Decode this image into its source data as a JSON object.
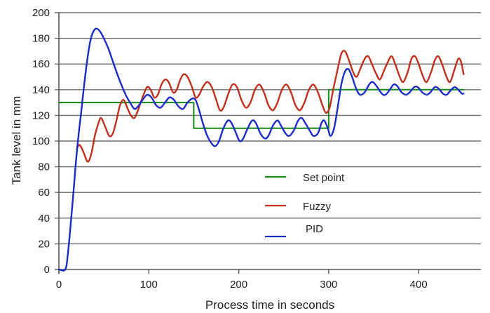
{
  "chart_data": {
    "type": "line",
    "title": "",
    "xlabel": "Process time in seconds",
    "ylabel": "Tank level in mm",
    "xlim": [
      0,
      470
    ],
    "ylim": [
      0,
      200
    ],
    "x_ticks": [
      0,
      100,
      200,
      300,
      400
    ],
    "y_ticks": [
      0,
      20,
      40,
      60,
      80,
      100,
      120,
      140,
      160,
      180,
      200
    ],
    "grid": {
      "horizontal": true,
      "vertical": false
    },
    "legend_position": "inside-lower-center",
    "series": [
      {
        "name": "Set point",
        "color": "#1a8a1a",
        "points": [
          [
            0,
            130
          ],
          [
            150,
            130
          ],
          [
            150,
            110
          ],
          [
            300,
            110
          ],
          [
            300,
            140
          ],
          [
            450,
            140
          ]
        ]
      },
      {
        "name": "Fuzzy",
        "color": "#c0301c",
        "points": [
          [
            20,
            94
          ],
          [
            23,
            97
          ],
          [
            27,
            92
          ],
          [
            32,
            84
          ],
          [
            36,
            90
          ],
          [
            40,
            104
          ],
          [
            44,
            114
          ],
          [
            47,
            118
          ],
          [
            51,
            112
          ],
          [
            56,
            104
          ],
          [
            60,
            106
          ],
          [
            64,
            116
          ],
          [
            68,
            128
          ],
          [
            72,
            132
          ],
          [
            76,
            126
          ],
          [
            80,
            120
          ],
          [
            84,
            118
          ],
          [
            88,
            124
          ],
          [
            93,
            134
          ],
          [
            98,
            142
          ],
          [
            102,
            140
          ],
          [
            106,
            134
          ],
          [
            110,
            136
          ],
          [
            114,
            144
          ],
          [
            118,
            148
          ],
          [
            122,
            146
          ],
          [
            127,
            138
          ],
          [
            131,
            140
          ],
          [
            135,
            148
          ],
          [
            139,
            152
          ],
          [
            143,
            150
          ],
          [
            148,
            142
          ],
          [
            152,
            134
          ],
          [
            156,
            136
          ],
          [
            160,
            142
          ],
          [
            165,
            146
          ],
          [
            170,
            142
          ],
          [
            175,
            132
          ],
          [
            179,
            124
          ],
          [
            183,
            126
          ],
          [
            188,
            136
          ],
          [
            193,
            144
          ],
          [
            198,
            142
          ],
          [
            203,
            132
          ],
          [
            208,
            126
          ],
          [
            213,
            130
          ],
          [
            218,
            140
          ],
          [
            223,
            144
          ],
          [
            228,
            138
          ],
          [
            233,
            128
          ],
          [
            238,
            124
          ],
          [
            243,
            130
          ],
          [
            248,
            140
          ],
          [
            253,
            144
          ],
          [
            258,
            138
          ],
          [
            263,
            128
          ],
          [
            268,
            124
          ],
          [
            273,
            130
          ],
          [
            278,
            140
          ],
          [
            283,
            144
          ],
          [
            288,
            138
          ],
          [
            293,
            128
          ],
          [
            297,
            122
          ],
          [
            301,
            126
          ],
          [
            305,
            140
          ],
          [
            310,
            156
          ],
          [
            314,
            168
          ],
          [
            318,
            170
          ],
          [
            322,
            164
          ],
          [
            327,
            154
          ],
          [
            331,
            150
          ],
          [
            335,
            156
          ],
          [
            340,
            164
          ],
          [
            344,
            166
          ],
          [
            348,
            160
          ],
          [
            353,
            152
          ],
          [
            357,
            148
          ],
          [
            361,
            154
          ],
          [
            366,
            162
          ],
          [
            370,
            166
          ],
          [
            374,
            160
          ],
          [
            379,
            150
          ],
          [
            383,
            146
          ],
          [
            388,
            154
          ],
          [
            392,
            164
          ],
          [
            396,
            166
          ],
          [
            400,
            160
          ],
          [
            405,
            150
          ],
          [
            409,
            146
          ],
          [
            414,
            154
          ],
          [
            418,
            163
          ],
          [
            422,
            166
          ],
          [
            426,
            160
          ],
          [
            431,
            150
          ],
          [
            435,
            146
          ],
          [
            440,
            156
          ],
          [
            444,
            164
          ],
          [
            447,
            162
          ],
          [
            450,
            152
          ]
        ]
      },
      {
        "name": "PID",
        "color": "#1c2cc8",
        "points": [
          [
            0,
            0
          ],
          [
            7,
            0
          ],
          [
            10,
            12
          ],
          [
            15,
            50
          ],
          [
            20,
            92
          ],
          [
            25,
            124
          ],
          [
            30,
            155
          ],
          [
            35,
            178
          ],
          [
            40,
            187
          ],
          [
            45,
            186
          ],
          [
            50,
            180
          ],
          [
            55,
            172
          ],
          [
            60,
            162
          ],
          [
            65,
            152
          ],
          [
            70,
            143
          ],
          [
            75,
            135
          ],
          [
            80,
            129
          ],
          [
            84,
            125
          ],
          [
            88,
            127
          ],
          [
            93,
            132
          ],
          [
            98,
            136
          ],
          [
            103,
            134
          ],
          [
            108,
            128
          ],
          [
            113,
            126
          ],
          [
            118,
            130
          ],
          [
            123,
            134
          ],
          [
            128,
            132
          ],
          [
            133,
            127
          ],
          [
            138,
            125
          ],
          [
            143,
            130
          ],
          [
            148,
            133
          ],
          [
            152,
            132
          ],
          [
            156,
            124
          ],
          [
            160,
            114
          ],
          [
            165,
            104
          ],
          [
            170,
            98
          ],
          [
            174,
            96
          ],
          [
            178,
            100
          ],
          [
            183,
            110
          ],
          [
            188,
            116
          ],
          [
            192,
            114
          ],
          [
            197,
            106
          ],
          [
            201,
            100
          ],
          [
            205,
            102
          ],
          [
            210,
            110
          ],
          [
            215,
            116
          ],
          [
            219,
            114
          ],
          [
            224,
            106
          ],
          [
            229,
            102
          ],
          [
            233,
            104
          ],
          [
            238,
            112
          ],
          [
            243,
            116
          ],
          [
            247,
            112
          ],
          [
            252,
            106
          ],
          [
            256,
            104
          ],
          [
            261,
            108
          ],
          [
            266,
            116
          ],
          [
            270,
            118
          ],
          [
            274,
            114
          ],
          [
            279,
            108
          ],
          [
            283,
            104
          ],
          [
            288,
            106
          ],
          [
            292,
            114
          ],
          [
            295,
            116
          ],
          [
            299,
            110
          ],
          [
            302,
            104
          ],
          [
            306,
            110
          ],
          [
            310,
            126
          ],
          [
            314,
            144
          ],
          [
            318,
            154
          ],
          [
            322,
            156
          ],
          [
            326,
            150
          ],
          [
            331,
            140
          ],
          [
            335,
            136
          ],
          [
            340,
            138
          ],
          [
            345,
            144
          ],
          [
            349,
            146
          ],
          [
            354,
            142
          ],
          [
            359,
            137
          ],
          [
            363,
            136
          ],
          [
            368,
            140
          ],
          [
            372,
            144
          ],
          [
            376,
            143
          ],
          [
            381,
            138
          ],
          [
            386,
            136
          ],
          [
            390,
            138
          ],
          [
            395,
            142
          ],
          [
            399,
            142
          ],
          [
            404,
            138
          ],
          [
            409,
            136
          ],
          [
            413,
            138
          ],
          [
            418,
            142
          ],
          [
            422,
            141
          ],
          [
            427,
            137
          ],
          [
            431,
            136
          ],
          [
            435,
            139
          ],
          [
            440,
            142
          ],
          [
            444,
            140
          ],
          [
            448,
            137
          ],
          [
            450,
            137
          ]
        ]
      }
    ]
  },
  "axes": {
    "x_title": "Process time in seconds",
    "y_title": "Tank level in mm",
    "x_tick_labels": [
      "0",
      "100",
      "200",
      "300",
      "400"
    ],
    "y_tick_labels": [
      "0",
      "20",
      "40",
      "60",
      "80",
      "100",
      "120",
      "140",
      "160",
      "180",
      "200"
    ]
  },
  "legend": {
    "items": [
      {
        "label": "Set point",
        "color": "#1a8a1a"
      },
      {
        "label": "Fuzzy",
        "color": "#c0301c"
      },
      {
        "label": "PID",
        "color": "#1c2cc8"
      }
    ]
  },
  "colors": {
    "grid": "#6e6e6e",
    "axis": "#555555",
    "text": "#222222"
  }
}
